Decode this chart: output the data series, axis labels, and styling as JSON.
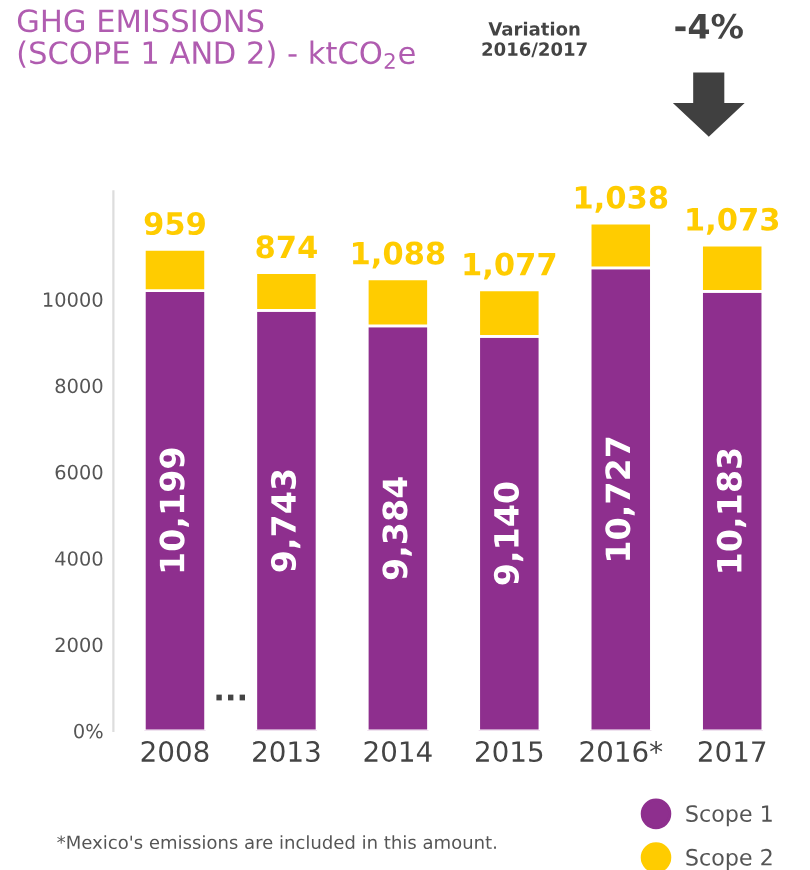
{
  "chart_data": {
    "type": "bar",
    "stacked": true,
    "title": "GHG EMISSIONS\n(SCOPE 1 AND 2) - ktCO$_{2}$e",
    "categories": [
      "2008",
      "2013",
      "2014",
      "2015",
      "2016*",
      "2017"
    ],
    "series": [
      {
        "name": "Scope 1",
        "color": "#8e2f8e",
        "values": [
          10199,
          9743,
          9384,
          9140,
          10727,
          10183
        ],
        "value_labels": [
          "10,199",
          "9,743",
          "9,384",
          "9,140",
          "10,727",
          "10,183"
        ]
      },
      {
        "name": "Scope 2",
        "color": "#ffcc00",
        "values": [
          959,
          874,
          1088,
          1077,
          1038,
          1073
        ],
        "value_labels": [
          "959",
          "874",
          "1,088",
          "1,077",
          "1,038",
          "1,073"
        ]
      }
    ],
    "ylim": [
      0,
      12500
    ],
    "yticks": [
      {
        "value": 0,
        "label": "0%"
      },
      2000,
      4000,
      6000,
      8000,
      10000
    ],
    "grid": false,
    "legend": "bottom right",
    "annotations": [
      "Variation\n2016/2017",
      "-4%",
      "...",
      "*Mexico's emissions are included in this amount."
    ]
  }
}
